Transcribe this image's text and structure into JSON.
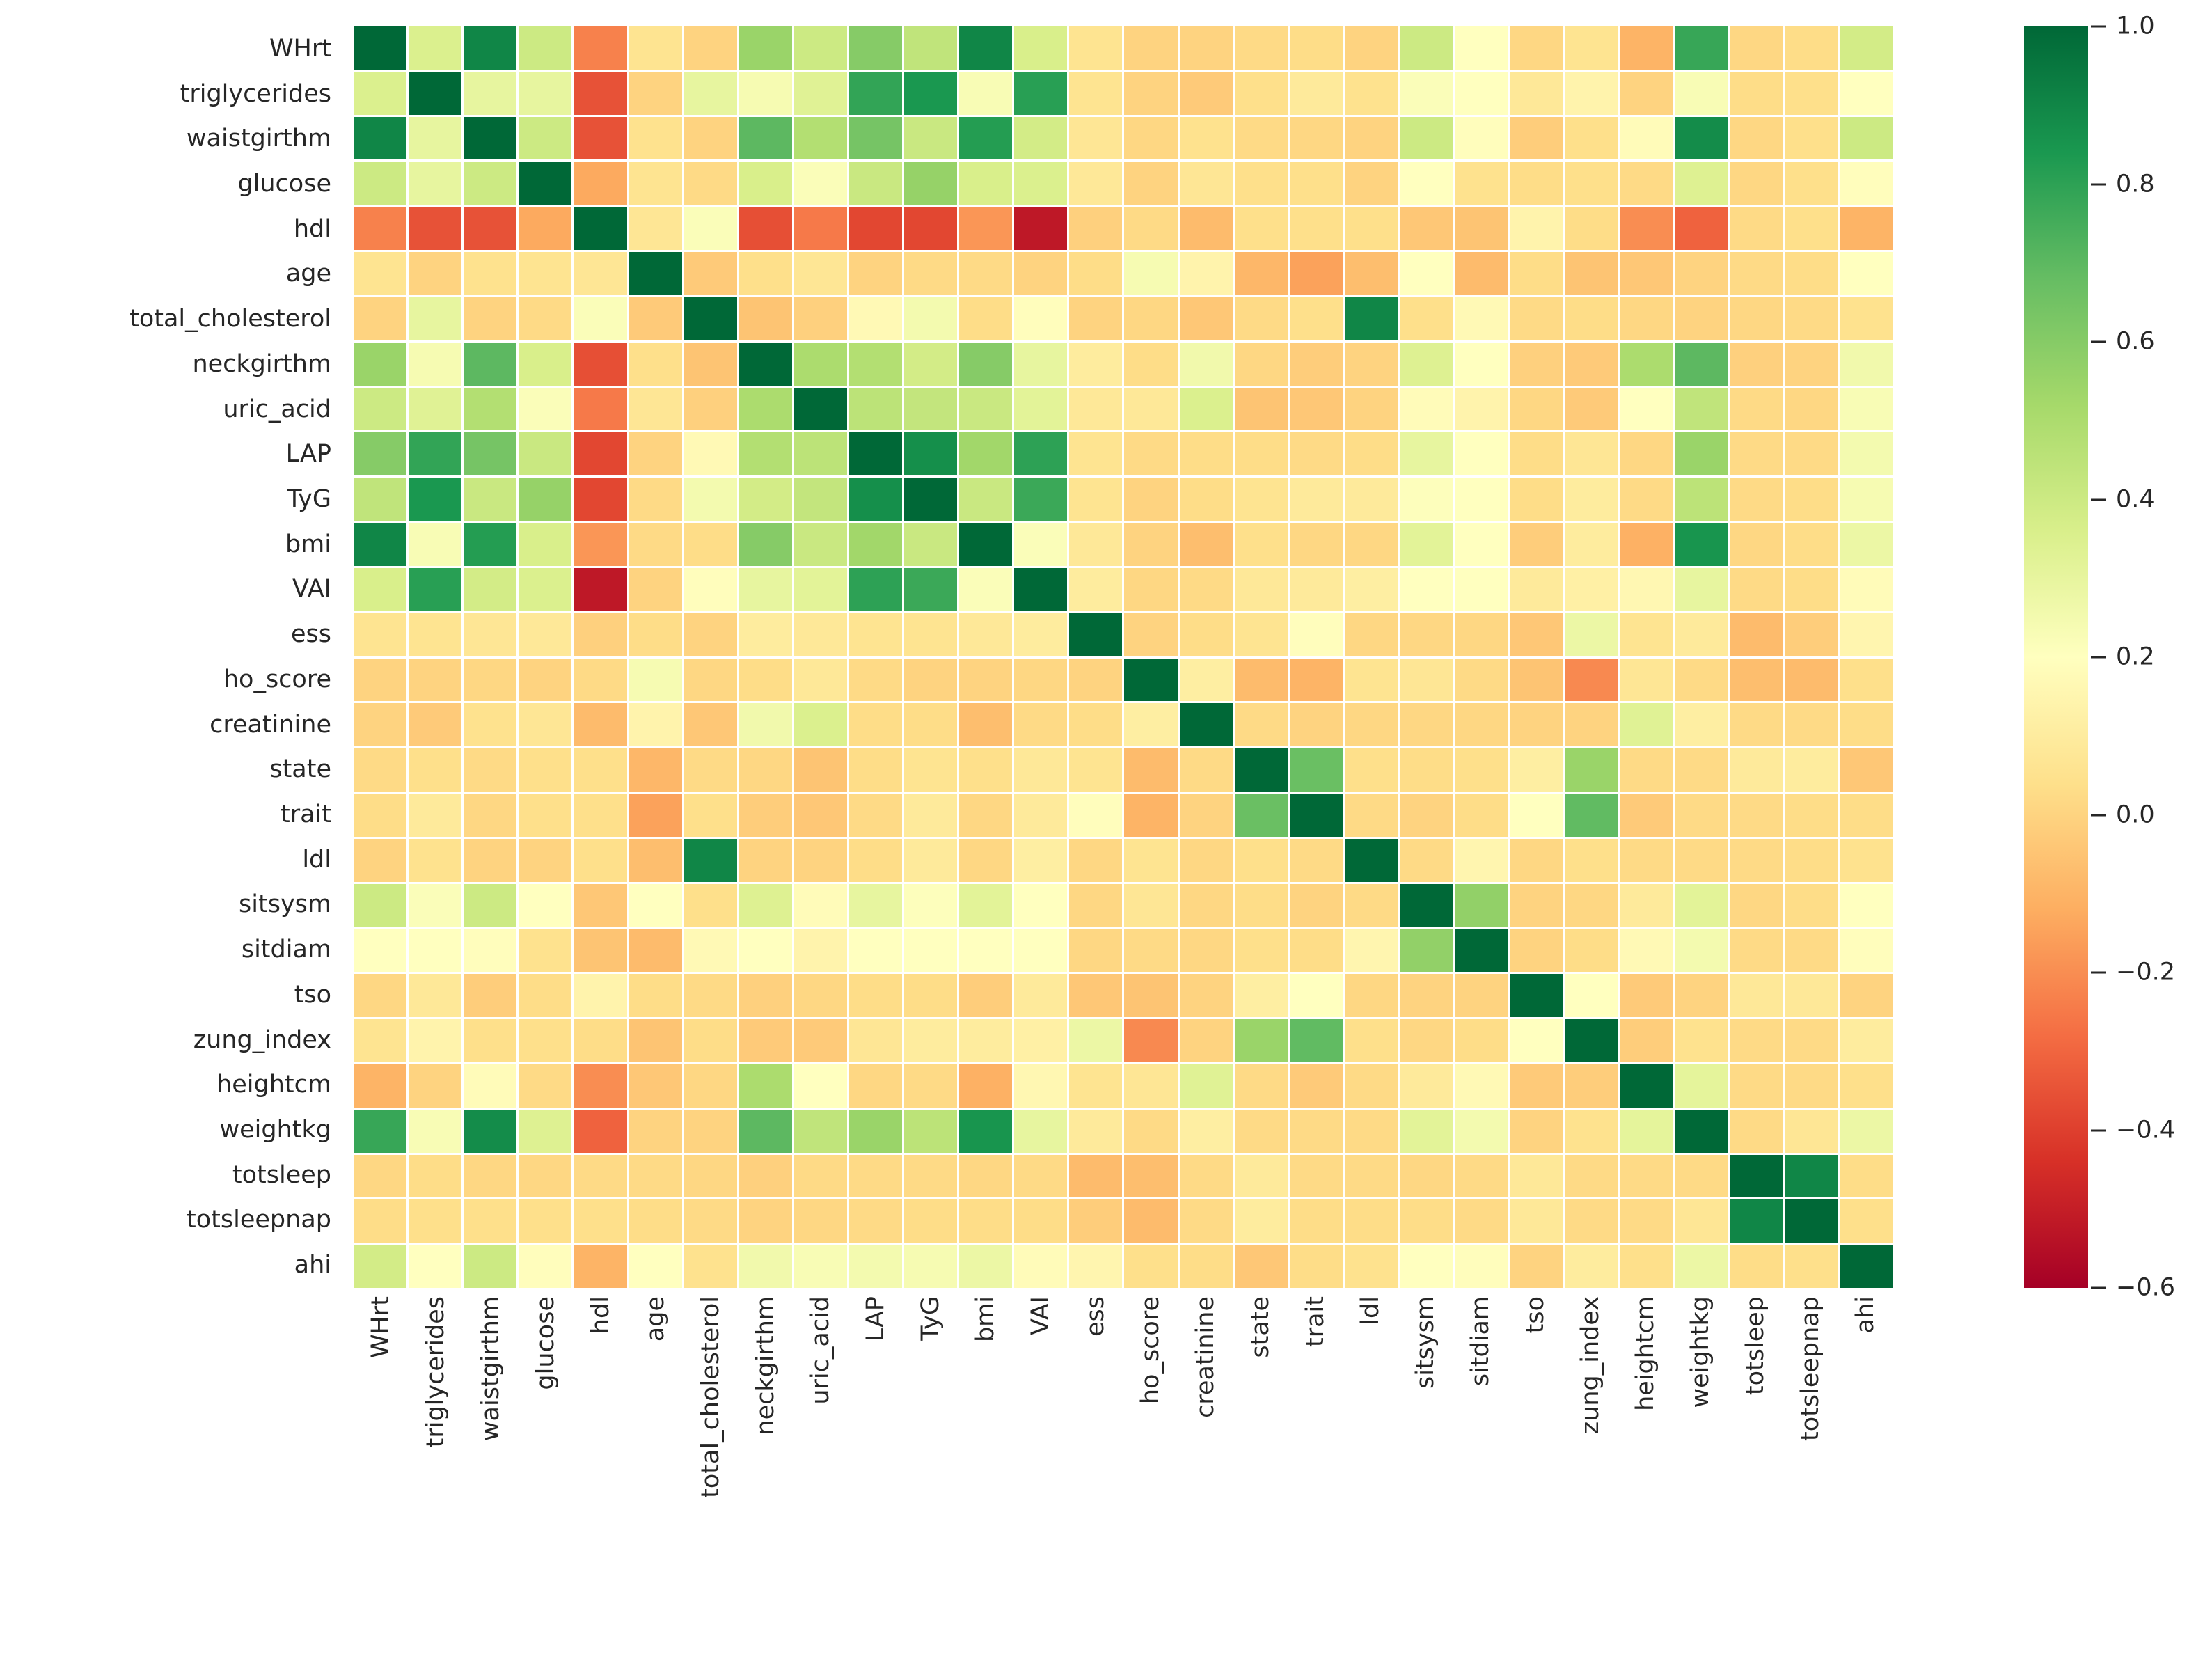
{
  "chart_data": {
    "type": "heatmap",
    "title": "",
    "xlabel": "",
    "ylabel": "",
    "grid": "off",
    "legend_position": "right-colorbar",
    "text_color": "#262626",
    "background_color": "#ffffff",
    "variables": [
      "WHrt",
      "triglycerides",
      "waistgirthm",
      "glucose",
      "hdl",
      "age",
      "total_cholesterol",
      "neckgirthm",
      "uric_acid",
      "LAP",
      "TyG",
      "bmi",
      "VAI",
      "ess",
      "ho_score",
      "creatinine",
      "state",
      "trait",
      "ldl",
      "sitsysm",
      "sitdiam",
      "tso",
      "zung_index",
      "heightcm",
      "weightkg",
      "totsleep",
      "totsleepnap",
      "ahi"
    ],
    "colormap": {
      "name": "RdYlGn",
      "vmin": -0.6,
      "vmax": 1.0,
      "stops": [
        "#a50026",
        "#d73027",
        "#f46d43",
        "#fdae61",
        "#fee08b",
        "#ffffbf",
        "#d9ef8b",
        "#a6d96a",
        "#66bd63",
        "#1a9850",
        "#006837"
      ]
    },
    "colorbar_ticks": [
      "1.0",
      "0.8",
      "0.6",
      "0.4",
      "0.2",
      "0.0",
      "−0.2",
      "−0.4",
      "−0.6"
    ],
    "colorbar_tick_values": [
      1.0,
      0.8,
      0.6,
      0.4,
      0.2,
      0.0,
      -0.2,
      -0.4,
      -0.6
    ],
    "matrix": [
      [
        1.0,
        0.35,
        0.9,
        0.4,
        -0.23,
        0.06,
        0.0,
        0.55,
        0.4,
        0.6,
        0.44,
        0.9,
        0.36,
        0.06,
        0.0,
        0.0,
        0.02,
        0.03,
        0.0,
        0.4,
        0.2,
        0.01,
        0.06,
        -0.1,
        0.78,
        0.01,
        0.03,
        0.38
      ],
      [
        0.35,
        1.0,
        0.3,
        0.3,
        -0.35,
        0.0,
        0.3,
        0.24,
        0.33,
        0.79,
        0.84,
        0.23,
        0.81,
        0.06,
        0.0,
        -0.03,
        0.04,
        0.09,
        0.05,
        0.22,
        0.2,
        0.08,
        0.14,
        0.0,
        0.23,
        0.03,
        0.04,
        0.2
      ],
      [
        0.9,
        0.3,
        1.0,
        0.4,
        -0.35,
        0.05,
        0.0,
        0.7,
        0.48,
        0.64,
        0.41,
        0.82,
        0.38,
        0.07,
        0.01,
        0.05,
        0.02,
        0.01,
        0.0,
        0.4,
        0.19,
        -0.02,
        0.04,
        0.18,
        0.88,
        0.01,
        0.04,
        0.4
      ],
      [
        0.4,
        0.3,
        0.4,
        1.0,
        -0.13,
        0.06,
        0.02,
        0.36,
        0.22,
        0.41,
        0.56,
        0.36,
        0.35,
        0.08,
        0.0,
        0.07,
        0.04,
        0.04,
        0.0,
        0.2,
        0.05,
        0.03,
        0.04,
        0.02,
        0.34,
        0.01,
        0.04,
        0.19
      ],
      [
        -0.23,
        -0.35,
        -0.35,
        -0.13,
        1.0,
        0.07,
        0.22,
        -0.36,
        -0.25,
        -0.38,
        -0.38,
        -0.18,
        -0.52,
        -0.01,
        0.02,
        -0.08,
        0.04,
        0.04,
        0.04,
        -0.04,
        -0.05,
        0.14,
        0.03,
        -0.2,
        -0.31,
        0.02,
        0.04,
        -0.1
      ],
      [
        0.06,
        0.0,
        0.05,
        0.06,
        0.07,
        1.0,
        -0.03,
        0.04,
        0.07,
        0.0,
        0.02,
        0.02,
        0.0,
        0.03,
        0.24,
        0.14,
        -0.09,
        -0.15,
        -0.07,
        0.2,
        -0.08,
        0.03,
        -0.05,
        -0.04,
        0.0,
        0.02,
        0.03,
        0.2
      ],
      [
        0.0,
        0.3,
        0.0,
        0.02,
        0.22,
        -0.03,
        1.0,
        -0.05,
        -0.01,
        0.17,
        0.25,
        0.03,
        0.19,
        0.0,
        0.01,
        -0.04,
        0.02,
        0.04,
        0.9,
        0.04,
        0.17,
        0.02,
        0.03,
        0.01,
        0.0,
        0.01,
        0.02,
        0.05
      ],
      [
        0.55,
        0.24,
        0.7,
        0.36,
        -0.36,
        0.04,
        -0.05,
        1.0,
        0.5,
        0.48,
        0.38,
        0.6,
        0.3,
        0.1,
        0.03,
        0.26,
        0.01,
        -0.02,
        0.0,
        0.34,
        0.2,
        -0.01,
        -0.03,
        0.5,
        0.7,
        -0.01,
        0.0,
        0.26
      ],
      [
        0.4,
        0.33,
        0.48,
        0.22,
        -0.25,
        0.07,
        -0.01,
        0.5,
        1.0,
        0.45,
        0.43,
        0.41,
        0.32,
        0.08,
        0.08,
        0.35,
        -0.05,
        -0.04,
        0.0,
        0.18,
        0.14,
        0.01,
        -0.03,
        0.2,
        0.44,
        0.02,
        0.01,
        0.23
      ],
      [
        0.6,
        0.79,
        0.64,
        0.41,
        -0.38,
        0.0,
        0.17,
        0.48,
        0.45,
        1.0,
        0.87,
        0.53,
        0.8,
        0.06,
        0.02,
        0.03,
        0.03,
        0.02,
        0.03,
        0.3,
        0.2,
        0.03,
        0.07,
        0.01,
        0.55,
        0.02,
        0.02,
        0.25
      ],
      [
        0.44,
        0.84,
        0.41,
        0.56,
        -0.38,
        0.02,
        0.25,
        0.38,
        0.43,
        0.87,
        1.0,
        0.41,
        0.77,
        0.06,
        0.0,
        0.03,
        0.06,
        0.09,
        0.09,
        0.21,
        0.2,
        0.03,
        0.1,
        0.02,
        0.45,
        0.02,
        0.03,
        0.24
      ],
      [
        0.9,
        0.23,
        0.82,
        0.36,
        -0.18,
        0.02,
        0.03,
        0.6,
        0.41,
        0.53,
        0.41,
        1.0,
        0.22,
        0.08,
        0.0,
        -0.07,
        0.04,
        0.01,
        0.01,
        0.32,
        0.2,
        -0.02,
        0.1,
        -0.11,
        0.85,
        0.01,
        0.03,
        0.28
      ],
      [
        0.36,
        0.81,
        0.38,
        0.35,
        -0.52,
        0.0,
        0.19,
        0.3,
        0.32,
        0.8,
        0.77,
        0.22,
        1.0,
        0.1,
        0.01,
        0.02,
        0.08,
        0.09,
        0.11,
        0.2,
        0.2,
        0.09,
        0.12,
        0.16,
        0.3,
        0.02,
        0.03,
        0.18
      ],
      [
        0.06,
        0.06,
        0.07,
        0.08,
        -0.01,
        0.03,
        0.0,
        0.1,
        0.08,
        0.06,
        0.06,
        0.08,
        0.1,
        1.0,
        0.0,
        0.03,
        0.06,
        0.19,
        0.01,
        0.01,
        0.01,
        -0.04,
        0.28,
        0.06,
        0.09,
        -0.08,
        -0.02,
        0.15
      ],
      [
        0.0,
        0.0,
        0.01,
        0.0,
        0.02,
        0.24,
        0.01,
        0.03,
        0.08,
        0.02,
        0.0,
        0.0,
        0.01,
        0.0,
        1.0,
        0.11,
        -0.08,
        -0.1,
        0.06,
        0.07,
        0.02,
        -0.05,
        -0.21,
        0.07,
        0.02,
        -0.07,
        -0.08,
        0.04
      ],
      [
        0.0,
        -0.03,
        0.05,
        0.07,
        -0.08,
        0.14,
        -0.04,
        0.26,
        0.35,
        0.03,
        0.03,
        -0.07,
        0.02,
        0.03,
        0.11,
        1.0,
        0.02,
        0.0,
        0.01,
        0.01,
        0.01,
        0.0,
        0.0,
        0.33,
        0.11,
        0.02,
        0.02,
        0.03
      ],
      [
        0.02,
        0.04,
        0.02,
        0.04,
        0.04,
        -0.09,
        0.02,
        0.01,
        -0.05,
        0.03,
        0.06,
        0.04,
        0.08,
        0.06,
        -0.08,
        0.02,
        1.0,
        0.67,
        0.04,
        0.03,
        0.04,
        0.11,
        0.55,
        0.02,
        0.02,
        0.09,
        0.1,
        -0.04
      ],
      [
        0.03,
        0.09,
        0.01,
        0.04,
        0.04,
        -0.15,
        0.04,
        -0.02,
        -0.04,
        0.02,
        0.09,
        0.01,
        0.09,
        0.19,
        -0.1,
        0.0,
        0.67,
        1.0,
        0.02,
        0.0,
        0.03,
        0.2,
        0.69,
        -0.03,
        0.02,
        0.02,
        0.03,
        0.03
      ],
      [
        0.0,
        0.05,
        0.0,
        0.0,
        0.04,
        -0.07,
        0.9,
        0.0,
        0.0,
        0.03,
        0.09,
        0.01,
        0.11,
        0.01,
        0.06,
        0.01,
        0.04,
        0.02,
        1.0,
        0.02,
        0.15,
        0.01,
        0.04,
        0.02,
        0.02,
        0.02,
        0.03,
        0.05
      ],
      [
        0.4,
        0.22,
        0.4,
        0.2,
        -0.04,
        0.2,
        0.04,
        0.34,
        0.18,
        0.3,
        0.21,
        0.32,
        0.2,
        0.01,
        0.07,
        0.01,
        0.03,
        0.0,
        0.02,
        1.0,
        0.57,
        0.0,
        0.01,
        0.09,
        0.32,
        0.01,
        0.03,
        0.2
      ],
      [
        0.2,
        0.2,
        0.19,
        0.05,
        -0.05,
        -0.08,
        0.17,
        0.2,
        0.14,
        0.2,
        0.2,
        0.2,
        0.2,
        0.01,
        0.02,
        0.01,
        0.04,
        0.03,
        0.15,
        0.57,
        1.0,
        0.0,
        0.03,
        0.17,
        0.25,
        0.02,
        0.02,
        0.19
      ],
      [
        0.01,
        0.08,
        -0.02,
        0.03,
        0.14,
        0.03,
        0.02,
        -0.01,
        0.01,
        0.03,
        0.03,
        -0.02,
        0.09,
        -0.04,
        -0.05,
        0.0,
        0.11,
        0.2,
        0.01,
        0.0,
        0.0,
        1.0,
        0.2,
        -0.03,
        0.0,
        0.08,
        0.08,
        0.0
      ],
      [
        0.06,
        0.14,
        0.04,
        0.04,
        0.03,
        -0.05,
        0.03,
        -0.03,
        -0.03,
        0.07,
        0.1,
        0.1,
        0.12,
        0.28,
        -0.21,
        0.0,
        0.55,
        0.69,
        0.04,
        0.01,
        0.03,
        0.2,
        1.0,
        -0.02,
        0.05,
        0.02,
        0.02,
        0.1
      ],
      [
        -0.1,
        0.0,
        0.18,
        0.02,
        -0.2,
        -0.04,
        0.01,
        0.5,
        0.2,
        0.01,
        0.02,
        -0.11,
        0.16,
        0.06,
        0.07,
        0.33,
        0.02,
        -0.03,
        0.02,
        0.09,
        0.17,
        -0.03,
        -0.02,
        1.0,
        0.31,
        0.02,
        0.02,
        0.04
      ],
      [
        0.78,
        0.23,
        0.88,
        0.34,
        -0.31,
        0.0,
        0.0,
        0.7,
        0.44,
        0.55,
        0.45,
        0.85,
        0.3,
        0.09,
        0.02,
        0.11,
        0.02,
        0.02,
        0.02,
        0.32,
        0.25,
        0.0,
        0.05,
        0.31,
        1.0,
        0.02,
        0.07,
        0.28
      ],
      [
        0.01,
        0.03,
        0.01,
        0.01,
        0.02,
        0.02,
        0.01,
        -0.01,
        0.02,
        0.02,
        0.02,
        0.01,
        0.02,
        -0.08,
        -0.07,
        0.02,
        0.09,
        0.02,
        0.02,
        0.01,
        0.02,
        0.08,
        0.02,
        0.02,
        0.02,
        1.0,
        0.9,
        0.03
      ],
      [
        0.03,
        0.04,
        0.04,
        0.04,
        0.04,
        0.03,
        0.02,
        0.0,
        0.01,
        0.02,
        0.03,
        0.03,
        0.03,
        -0.02,
        -0.08,
        0.02,
        0.1,
        0.03,
        0.03,
        0.03,
        0.02,
        0.08,
        0.02,
        0.02,
        0.07,
        0.9,
        1.0,
        0.04
      ],
      [
        0.38,
        0.2,
        0.4,
        0.19,
        -0.1,
        0.2,
        0.05,
        0.26,
        0.23,
        0.25,
        0.24,
        0.28,
        0.18,
        0.15,
        0.04,
        0.03,
        -0.04,
        0.03,
        0.05,
        0.2,
        0.19,
        0.0,
        0.1,
        0.04,
        0.28,
        0.03,
        0.04,
        1.0
      ]
    ]
  }
}
